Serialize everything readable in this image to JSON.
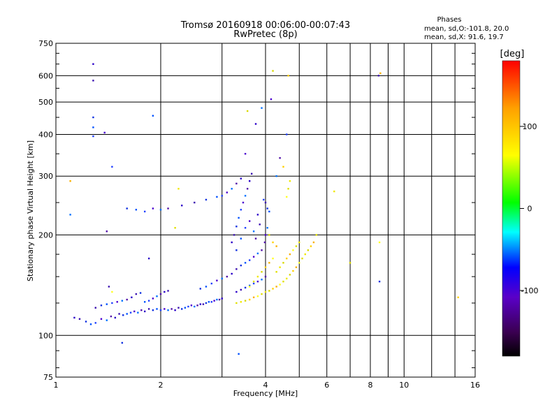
{
  "chart_data": {
    "type": "scatter",
    "title": "Tromsø 20160918 00:06:00-00:07:43",
    "subtitle": "RwPretec (8p)",
    "xlabel": "Frequency [MHz]",
    "ylabel": "Stationary phase Virtual Height [km]",
    "x_scale": "log2",
    "y_scale": "log",
    "xlim": [
      1,
      16
    ],
    "ylim": [
      75,
      750
    ],
    "x_ticks": [
      1,
      2,
      4,
      6,
      8,
      10,
      16
    ],
    "x_tick_labels": [
      "1",
      "2",
      "4",
      "6",
      "8",
      "10",
      "16"
    ],
    "x_minor_ticks": [
      3,
      5,
      7,
      9,
      12,
      14
    ],
    "y_ticks": [
      75,
      100,
      200,
      300,
      400,
      500,
      600,
      750
    ],
    "y_tick_labels": [
      "75",
      "100",
      "200",
      "300",
      "400",
      "500",
      "600",
      "750"
    ],
    "y_minor_ticks": [
      80,
      90,
      125,
      150,
      175,
      250,
      350,
      450,
      550,
      650,
      700
    ],
    "grid": true,
    "legend": {
      "title": "Phases",
      "lines": [
        "mean, sd,O:-101.8, 20.0",
        "mean, sd,X:  91.6, 19.7"
      ]
    },
    "colorbar": {
      "label": "[deg]",
      "range": [
        -180,
        180
      ],
      "ticks": [
        100,
        0,
        -100
      ],
      "tick_labels": [
        "100",
        "0",
        "-100"
      ],
      "stops": [
        "#000000",
        "#3a0050",
        "#5a00c8",
        "#0000ff",
        "#00ffff",
        "#00ff00",
        "#ffff00",
        "#ffa000",
        "#ff0000"
      ]
    },
    "series": [
      {
        "values": [
          [
            1.13,
            113
          ],
          [
            1.17,
            112
          ],
          [
            1.22,
            110
          ],
          [
            1.26,
            108
          ],
          [
            1.3,
            109
          ],
          [
            1.35,
            112
          ],
          [
            1.4,
            111
          ],
          [
            1.44,
            114
          ],
          [
            1.48,
            113
          ],
          [
            1.52,
            116
          ],
          [
            1.56,
            115
          ],
          [
            1.6,
            116
          ],
          [
            1.64,
            117
          ],
          [
            1.68,
            118
          ],
          [
            1.72,
            117
          ],
          [
            1.76,
            119
          ],
          [
            1.8,
            118
          ],
          [
            1.85,
            120
          ],
          [
            1.9,
            119
          ],
          [
            1.95,
            120
          ],
          [
            2.0,
            119
          ],
          [
            2.05,
            120
          ],
          [
            2.1,
            119
          ],
          [
            2.15,
            120
          ],
          [
            2.2,
            119
          ],
          [
            2.25,
            121
          ],
          [
            2.3,
            120
          ],
          [
            2.35,
            121
          ],
          [
            2.4,
            122
          ],
          [
            2.45,
            123
          ],
          [
            2.5,
            122
          ],
          [
            2.55,
            123
          ],
          [
            2.6,
            124
          ],
          [
            2.65,
            124
          ],
          [
            2.7,
            125
          ],
          [
            2.75,
            126
          ],
          [
            2.8,
            126
          ],
          [
            2.85,
            127
          ],
          [
            2.9,
            128
          ],
          [
            2.95,
            128
          ],
          [
            3.0,
            129
          ],
          [
            1.3,
            121
          ],
          [
            1.35,
            123
          ],
          [
            1.4,
            124
          ],
          [
            1.45,
            125
          ],
          [
            1.5,
            126
          ],
          [
            1.55,
            127
          ],
          [
            1.6,
            128
          ],
          [
            1.65,
            130
          ],
          [
            1.7,
            133
          ],
          [
            1.75,
            134
          ],
          [
            1.8,
            126
          ],
          [
            1.85,
            127
          ],
          [
            1.9,
            129
          ],
          [
            1.95,
            131
          ],
          [
            2.0,
            133
          ],
          [
            2.05,
            135
          ],
          [
            2.1,
            136
          ],
          [
            2.6,
            138
          ],
          [
            2.7,
            140
          ],
          [
            2.8,
            143
          ],
          [
            2.9,
            146
          ],
          [
            3.0,
            148
          ],
          [
            3.1,
            150
          ],
          [
            3.2,
            153
          ],
          [
            3.3,
            158
          ],
          [
            3.4,
            162
          ],
          [
            3.5,
            165
          ],
          [
            3.6,
            168
          ],
          [
            3.7,
            172
          ],
          [
            3.8,
            176
          ],
          [
            3.9,
            180
          ],
          [
            3.3,
            135
          ],
          [
            3.4,
            137
          ],
          [
            3.5,
            139
          ],
          [
            3.6,
            141
          ],
          [
            3.7,
            143
          ],
          [
            3.8,
            145
          ],
          [
            3.9,
            147
          ],
          [
            4.0,
            150
          ],
          [
            3.2,
            190
          ],
          [
            3.25,
            200
          ],
          [
            3.3,
            212
          ],
          [
            3.35,
            225
          ],
          [
            3.4,
            238
          ],
          [
            3.45,
            250
          ],
          [
            3.5,
            262
          ],
          [
            3.55,
            275
          ],
          [
            3.6,
            290
          ],
          [
            3.65,
            305
          ],
          [
            3.3,
            180
          ],
          [
            3.4,
            195
          ],
          [
            3.5,
            210
          ],
          [
            3.6,
            220
          ],
          [
            3.7,
            205
          ],
          [
            3.75,
            195
          ],
          [
            3.8,
            230
          ],
          [
            3.85,
            215
          ],
          [
            1.6,
            240
          ],
          [
            1.7,
            238
          ],
          [
            1.8,
            235
          ],
          [
            1.9,
            240
          ],
          [
            2.0,
            238
          ],
          [
            2.1,
            240
          ],
          [
            2.3,
            245
          ],
          [
            2.5,
            250
          ],
          [
            2.7,
            255
          ],
          [
            2.9,
            260
          ],
          [
            3.0,
            262
          ],
          [
            3.1,
            268
          ],
          [
            3.2,
            275
          ],
          [
            3.3,
            285
          ],
          [
            3.4,
            295
          ],
          [
            4.0,
            250
          ],
          [
            4.05,
            240
          ],
          [
            4.1,
            235
          ],
          [
            3.95,
            255
          ],
          [
            4.0,
            200
          ],
          [
            4.05,
            210
          ],
          [
            3.98,
            190
          ],
          [
            1.28,
            650
          ],
          [
            1.28,
            580
          ],
          [
            1.28,
            450
          ],
          [
            1.28,
            420
          ],
          [
            1.28,
            395
          ],
          [
            1.38,
            405
          ],
          [
            1.1,
            230
          ],
          [
            1.4,
            205
          ],
          [
            1.85,
            170
          ],
          [
            1.42,
            140
          ],
          [
            1.55,
            95
          ],
          [
            3.35,
            88
          ],
          [
            4.6,
            400
          ],
          [
            4.15,
            510
          ],
          [
            3.9,
            480
          ],
          [
            4.4,
            340
          ],
          [
            3.75,
            430
          ],
          [
            8.45,
            600
          ],
          [
            8.5,
            145
          ],
          [
            1.9,
            455
          ],
          [
            1.45,
            320
          ],
          [
            3.5,
            350
          ],
          [
            4.3,
            300
          ]
        ]
      },
      {
        "values": [
          [
            3.3,
            125
          ],
          [
            3.4,
            126
          ],
          [
            3.5,
            127
          ],
          [
            3.6,
            128
          ],
          [
            3.7,
            130
          ],
          [
            3.8,
            131
          ],
          [
            3.9,
            133
          ],
          [
            4.0,
            135
          ],
          [
            4.1,
            136
          ],
          [
            4.2,
            138
          ],
          [
            4.3,
            140
          ],
          [
            4.4,
            142
          ],
          [
            4.5,
            145
          ],
          [
            4.6,
            148
          ],
          [
            4.7,
            152
          ],
          [
            4.8,
            156
          ],
          [
            4.9,
            160
          ],
          [
            5.0,
            165
          ],
          [
            5.1,
            170
          ],
          [
            5.2,
            175
          ],
          [
            5.3,
            180
          ],
          [
            5.4,
            185
          ],
          [
            5.5,
            190
          ],
          [
            3.6,
            140
          ],
          [
            3.7,
            145
          ],
          [
            3.8,
            150
          ],
          [
            3.9,
            155
          ],
          [
            4.0,
            160
          ],
          [
            4.1,
            165
          ],
          [
            4.2,
            170
          ],
          [
            4.3,
            155
          ],
          [
            4.4,
            160
          ],
          [
            4.5,
            165
          ],
          [
            4.6,
            170
          ],
          [
            4.7,
            175
          ],
          [
            4.8,
            180
          ],
          [
            4.9,
            185
          ],
          [
            5.0,
            190
          ],
          [
            4.1,
            200
          ],
          [
            4.2,
            190
          ],
          [
            4.3,
            185
          ],
          [
            4.6,
            260
          ],
          [
            4.65,
            275
          ],
          [
            4.7,
            290
          ],
          [
            4.2,
            620
          ],
          [
            4.65,
            600
          ],
          [
            8.55,
            610
          ],
          [
            8.5,
            190
          ],
          [
            5.6,
            200
          ],
          [
            6.3,
            270
          ],
          [
            7.0,
            165
          ],
          [
            14.3,
            130
          ],
          [
            1.1,
            290
          ],
          [
            1.45,
            135
          ],
          [
            2.2,
            210
          ],
          [
            2.25,
            275
          ],
          [
            3.55,
            470
          ],
          [
            4.5,
            320
          ]
        ]
      }
    ]
  }
}
